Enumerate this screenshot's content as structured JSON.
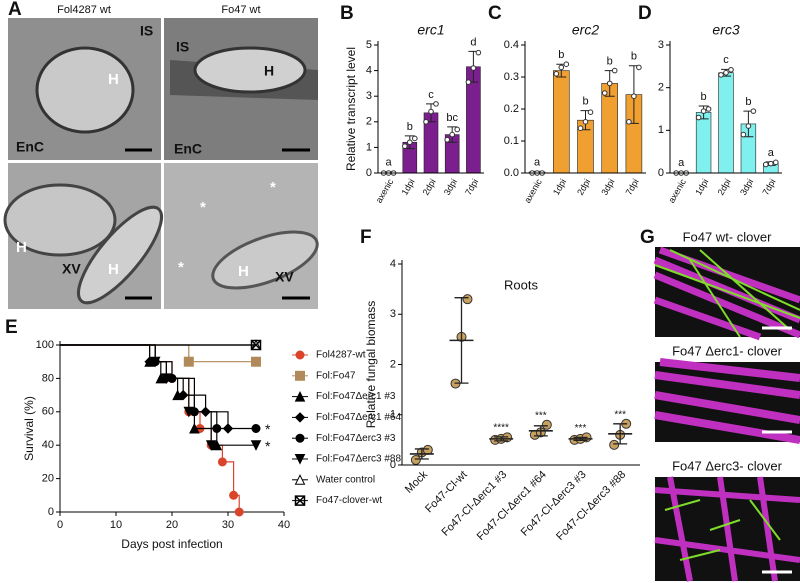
{
  "panel_labels": [
    "A",
    "B",
    "C",
    "D",
    "E",
    "F",
    "G"
  ],
  "micrographs": {
    "columns": [
      "Fol4287 wt",
      "Fo47 wt"
    ],
    "labels": [
      "IS",
      "H",
      "EnC",
      "IS",
      "H",
      "EnC",
      "H",
      "XV",
      "H",
      "*",
      "*",
      "*",
      "H",
      "XV"
    ]
  },
  "confocal": {
    "titles": [
      "Fo47 wt- clover",
      "Fo47 Δerc1- clover",
      "Fo47 Δerc3- clover"
    ]
  },
  "chart_data": [
    {
      "type": "bar",
      "title": "erc1",
      "y_label": "Relative transcript level",
      "color": "#7b1f8f",
      "categories": [
        "axenic",
        "1dpi",
        "2dpi",
        "3dpi",
        "7dpi"
      ],
      "values": [
        0.02,
        1.2,
        2.35,
        1.5,
        4.15
      ],
      "errors": [
        0.03,
        0.25,
        0.35,
        0.3,
        0.6
      ],
      "points": [
        [
          0,
          0,
          0
        ],
        [
          1.05,
          1.2,
          1.35
        ],
        [
          2.0,
          2.4,
          2.7
        ],
        [
          1.3,
          1.5,
          1.7
        ],
        [
          3.55,
          4.1,
          4.7
        ]
      ],
      "letters": [
        "a",
        "b",
        "c",
        "bc",
        "d"
      ],
      "ylim": [
        0,
        5
      ],
      "yticks": [
        0,
        1,
        2,
        3,
        4,
        5
      ]
    },
    {
      "type": "bar",
      "title": "erc2",
      "color": "#f0a030",
      "categories": [
        "axenic",
        "1dpi",
        "2dpi",
        "3dpi",
        "7dpi"
      ],
      "values": [
        0.003,
        0.32,
        0.165,
        0.28,
        0.245
      ],
      "errors": [
        0.002,
        0.02,
        0.03,
        0.04,
        0.09
      ],
      "points": [
        [
          0,
          0,
          0
        ],
        [
          0.31,
          0.33,
          0.34
        ],
        [
          0.14,
          0.16,
          0.19
        ],
        [
          0.25,
          0.28,
          0.32
        ],
        [
          0.16,
          0.24,
          0.33
        ]
      ],
      "letters": [
        "a",
        "b",
        "b",
        "b",
        "b"
      ],
      "ylim": [
        0,
        0.4
      ],
      "yticks": [
        {
          "value": 0,
          "label": "0.0"
        },
        0.1,
        0.2,
        0.3,
        0.4
      ]
    },
    {
      "type": "bar",
      "title": "erc3",
      "color": "#7ff0ee",
      "categories": [
        "axenic",
        "1dpi",
        "2dpi",
        "3dpi",
        "7dpi"
      ],
      "values": [
        0.01,
        1.42,
        2.35,
        1.15,
        0.22
      ],
      "errors": [
        0.01,
        0.15,
        0.08,
        0.3,
        0.04
      ],
      "points": [
        [
          0,
          0,
          0
        ],
        [
          1.3,
          1.45,
          1.5
        ],
        [
          2.3,
          2.35,
          2.42
        ],
        [
          0.9,
          1.1,
          1.45
        ],
        [
          0.2,
          0.22,
          0.25
        ]
      ],
      "letters": [
        "a",
        "b",
        "c",
        "b",
        "a"
      ],
      "ylim": [
        0,
        3
      ],
      "yticks": [
        0,
        1,
        2,
        3
      ]
    },
    {
      "type": "step",
      "x_label": "Days post infection",
      "y_label": "Survival (%)",
      "legend": "right",
      "xlim": [
        0,
        40
      ],
      "xticks": [
        0,
        10,
        20,
        30,
        40
      ],
      "ylim": [
        0,
        100
      ],
      "yticks": [
        0,
        20,
        40,
        60,
        80,
        100
      ],
      "series": [
        {
          "name": "Fol4287-wt",
          "color": "#d9442b",
          "marker": "circle",
          "x": [
            0,
            17,
            20,
            23,
            25,
            27,
            29,
            31,
            32
          ],
          "values": [
            100,
            90,
            80,
            60,
            50,
            40,
            30,
            10,
            0
          ]
        },
        {
          "name": "Fol:Fo47",
          "color": "#b08a5a",
          "marker": "square",
          "x": [
            0,
            23,
            35
          ],
          "values": [
            100,
            90,
            90
          ]
        },
        {
          "name": "Fol:Fo47Δerc1 #3",
          "color": "#000000",
          "marker": "triangle-up",
          "x": [
            0,
            16,
            18,
            21,
            24,
            28
          ],
          "values": [
            100,
            90,
            80,
            70,
            50,
            40
          ]
        },
        {
          "name": "Fol:Fo47Δerc1 #64",
          "color": "#000000",
          "marker": "diamond",
          "x": [
            0,
            16,
            19,
            22,
            26,
            30
          ],
          "values": [
            100,
            90,
            80,
            70,
            60,
            50
          ]
        },
        {
          "name": "Fol:Fo47Δerc3 #3",
          "color": "#000000",
          "marker": "circle",
          "x": [
            0,
            17,
            20,
            24,
            28,
            35
          ],
          "values": [
            100,
            90,
            80,
            60,
            50,
            50
          ],
          "annotation": "*"
        },
        {
          "name": "Fol:Fo47Δerc3  #88",
          "color": "#000000",
          "marker": "triangle-down",
          "x": [
            0,
            17,
            19,
            23,
            27,
            35
          ],
          "values": [
            100,
            90,
            80,
            60,
            40,
            40
          ],
          "annotation": "*"
        },
        {
          "name": "Water control",
          "color": "#000000",
          "marker": "triangle-open",
          "x": [
            0,
            35
          ],
          "values": [
            100,
            100
          ]
        },
        {
          "name": "Fo47-clover-wt",
          "color": "#000000",
          "marker": "square-x",
          "x": [
            0,
            35
          ],
          "values": [
            100,
            100
          ]
        }
      ]
    },
    {
      "type": "dotplot",
      "title": "Roots",
      "y_label": "Relative fungal biomass",
      "color": "#c8a060",
      "categories": [
        "Mock",
        "Fo47-Cl-wt",
        "Fo47-Cl-Δerc1 #3",
        "Fo47-Cl-Δerc1 #64",
        "Fo47-Cl-Δerc3 #3",
        "Fo47-Cl-Δerc3 #88"
      ],
      "values": [
        0.22,
        2.48,
        0.52,
        0.68,
        0.52,
        0.62
      ],
      "errors": [
        0.1,
        0.85,
        0.04,
        0.1,
        0.03,
        0.2
      ],
      "points": [
        [
          0.1,
          0.25,
          0.3
        ],
        [
          1.62,
          2.55,
          3.3
        ],
        [
          0.5,
          0.52,
          0.55
        ],
        [
          0.6,
          0.65,
          0.8
        ],
        [
          0.5,
          0.52,
          0.55
        ],
        [
          0.4,
          0.6,
          0.82
        ]
      ],
      "significance": [
        null,
        null,
        "****",
        "***",
        "***",
        "***"
      ],
      "ylim": [
        0,
        4
      ],
      "yticks": [
        0,
        1,
        2,
        3,
        4
      ]
    }
  ]
}
